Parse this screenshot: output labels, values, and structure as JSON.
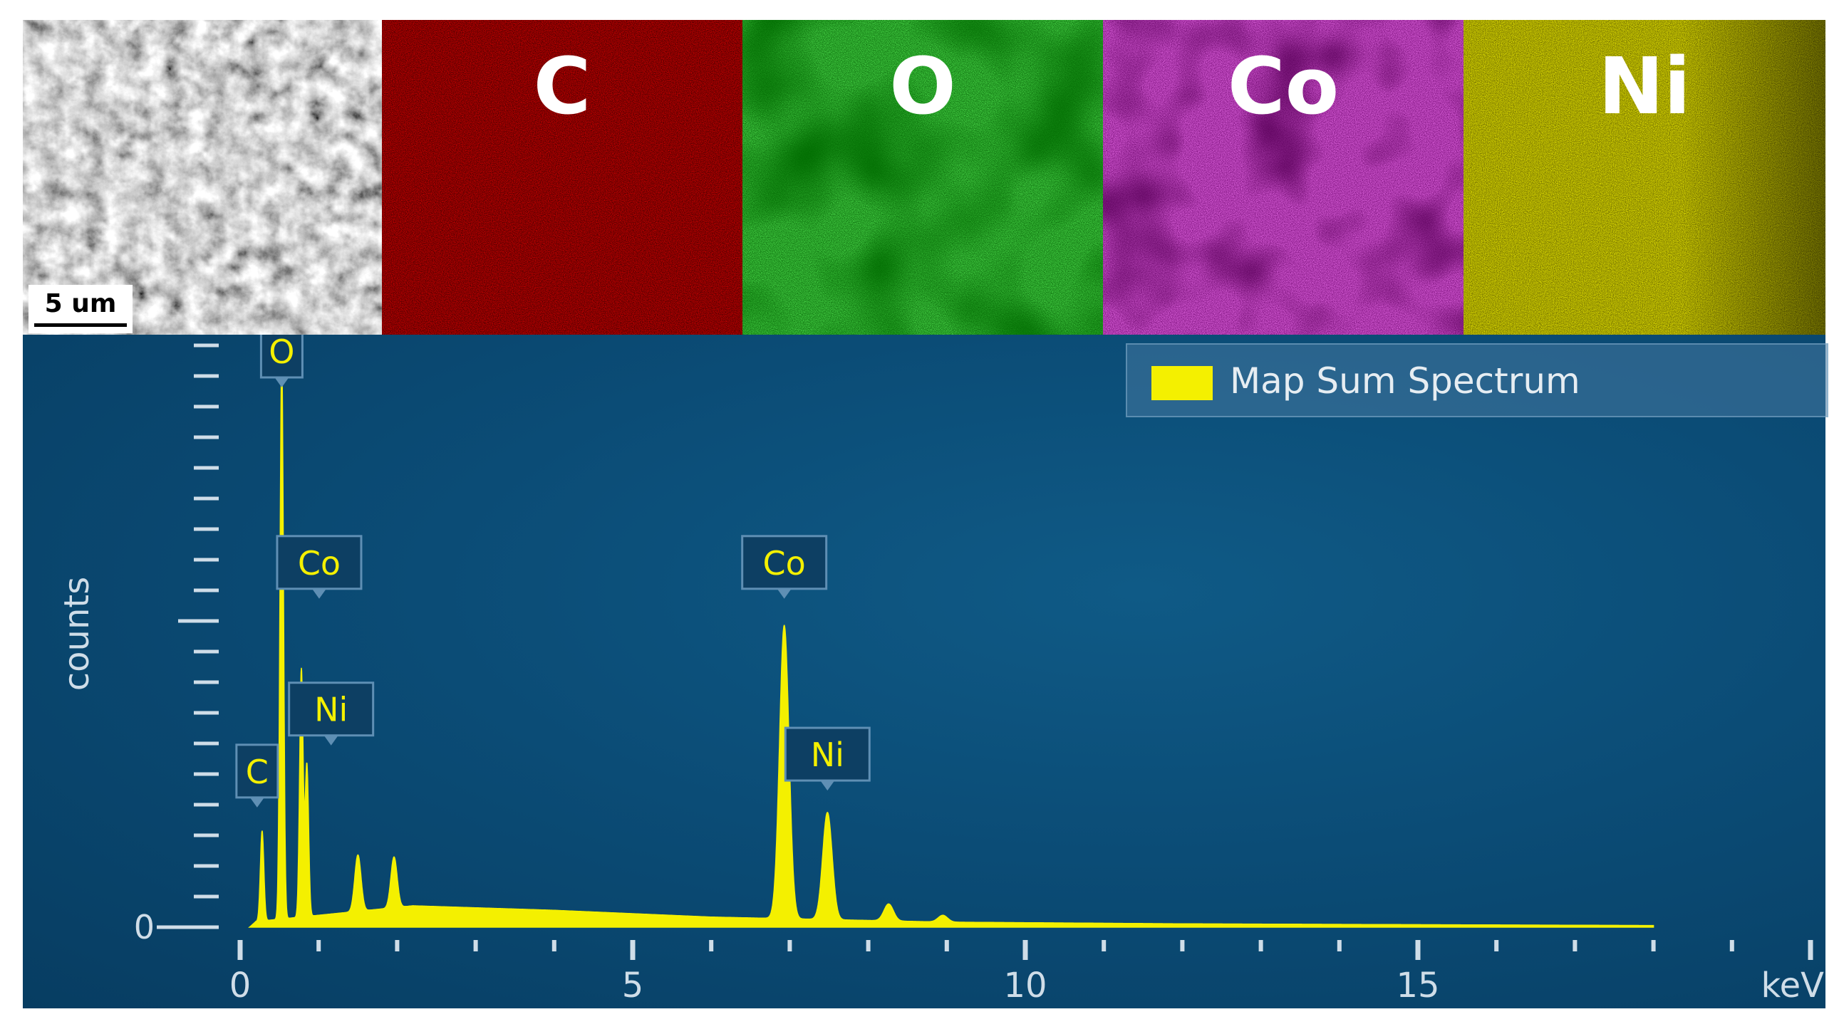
{
  "maps": {
    "sem": {
      "scalebar_label": "5 um"
    },
    "tiles": [
      {
        "element": "C",
        "color": "#c80000"
      },
      {
        "element": "O",
        "color": "#13c213"
      },
      {
        "element": "Co",
        "color": "#d61ed6"
      },
      {
        "element": "Ni",
        "color": "#c8c400"
      }
    ]
  },
  "spectrum": {
    "legend": "Map Sum Spectrum",
    "legend_color": "#f4f000",
    "background_color": "#0b4c76"
  },
  "chart_data": {
    "type": "line",
    "title": "",
    "xlabel": "keV",
    "ylabel": "counts",
    "xlim": [
      0,
      20
    ],
    "ylim": [
      0,
      100
    ],
    "x_ticks": [
      "0",
      "5",
      "10",
      "15"
    ],
    "y_ticks": [
      "0"
    ],
    "legend": "top-right",
    "grid": false,
    "series": [
      {
        "name": "Map Sum Spectrum",
        "color": "#f4f000",
        "peaks": [
          {
            "x": 0.28,
            "y": 16
          },
          {
            "x": 0.53,
            "y": 100
          },
          {
            "x": 0.78,
            "y": 44
          },
          {
            "x": 0.85,
            "y": 27
          },
          {
            "x": 1.5,
            "y": 10
          },
          {
            "x": 1.96,
            "y": 9
          },
          {
            "x": 6.93,
            "y": 52
          },
          {
            "x": 7.48,
            "y": 19
          },
          {
            "x": 8.26,
            "y": 3
          },
          {
            "x": 8.95,
            "y": 1.2
          }
        ],
        "background": [
          {
            "x": 0.2,
            "y": 1
          },
          {
            "x": 2.2,
            "y": 3.8
          },
          {
            "x": 4,
            "y": 3
          },
          {
            "x": 6,
            "y": 1.8
          },
          {
            "x": 9,
            "y": 0.9
          },
          {
            "x": 12,
            "y": 0.6
          },
          {
            "x": 18,
            "y": 0.3
          }
        ]
      }
    ],
    "annotations": [
      {
        "label": "O",
        "x": 0.53,
        "y": 100
      },
      {
        "label": "Co",
        "x": 0.78,
        "y": 60
      },
      {
        "label": "Ni",
        "x": 0.85,
        "y": 34
      },
      {
        "label": "C",
        "x": 0.28,
        "y": 23
      },
      {
        "label": "Co",
        "x": 6.93,
        "y": 60
      },
      {
        "label": "Ni",
        "x": 7.48,
        "y": 26
      }
    ]
  }
}
